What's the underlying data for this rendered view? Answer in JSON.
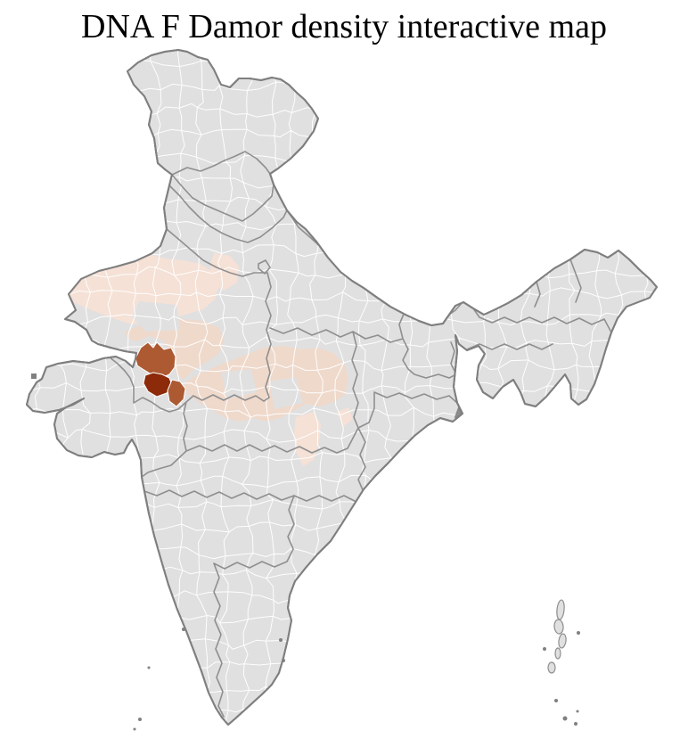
{
  "page": {
    "title": "DNA F Damor density interactive map"
  },
  "map": {
    "description": "India district-level choropleth",
    "colors": {
      "sea": "#ffffff",
      "district_base": "#e0e0e1",
      "district_border": "#ffffff",
      "state_border": "#8f8f8f",
      "country_border": "#7f7f7f",
      "density_low": "#f5e1d6",
      "density_low_alt": "#efd9cb",
      "density_medium": "#ad5a33",
      "density_high": "#8c2a0a",
      "no_data": "#808080"
    }
  }
}
